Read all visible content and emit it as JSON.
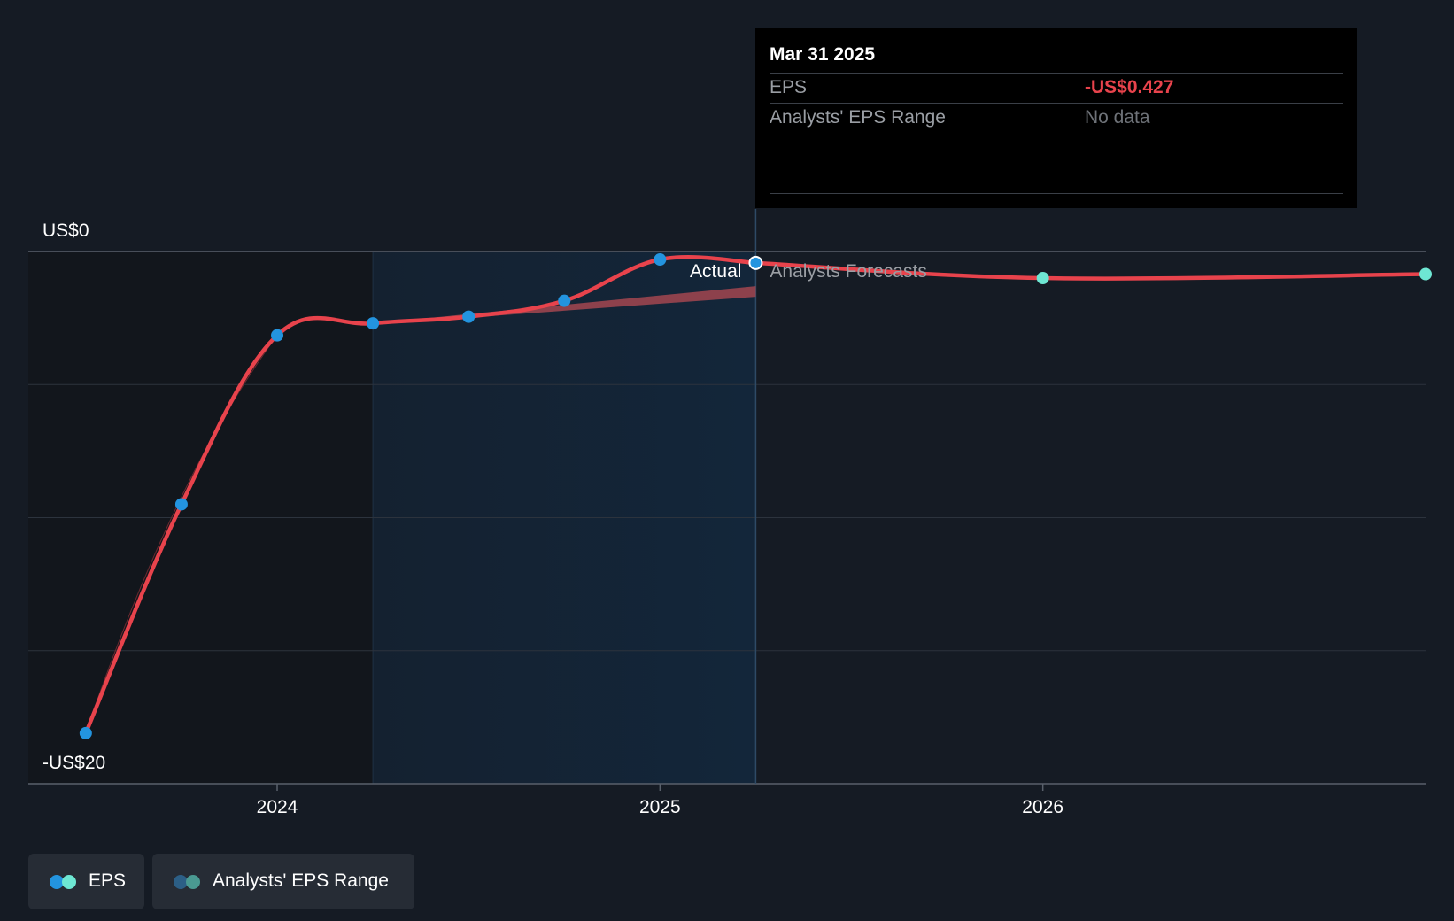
{
  "chart_data": {
    "type": "line",
    "title": "",
    "y_axis": {
      "top_label": "US$0",
      "bottom_label": "-US$20",
      "range": [
        -20,
        0
      ],
      "gridlines": [
        0,
        -5,
        -10,
        -15,
        -20
      ]
    },
    "x_axis": {
      "ticks": [
        {
          "label": "2024",
          "value": 2024.0
        },
        {
          "label": "2025",
          "value": 2025.0
        },
        {
          "label": "2026",
          "value": 2026.0
        }
      ],
      "range": [
        2023.35,
        2027.0
      ]
    },
    "highlight_region": {
      "from": 2024.25,
      "to": 2025.25
    },
    "divider_date": 2025.25,
    "region_labels": {
      "actual": "Actual",
      "forecast": "Analysts Forecasts"
    },
    "series": [
      {
        "name": "EPS",
        "kind": "actual",
        "color": "#e8434c",
        "points": [
          {
            "x": 2023.5,
            "y": -18.1
          },
          {
            "x": 2023.75,
            "y": -9.5
          },
          {
            "x": 2024.0,
            "y": -3.15
          },
          {
            "x": 2024.25,
            "y": -2.7
          },
          {
            "x": 2024.5,
            "y": -2.45
          },
          {
            "x": 2024.75,
            "y": -1.85
          },
          {
            "x": 2025.0,
            "y": -0.3
          },
          {
            "x": 2025.25,
            "y": -0.427
          }
        ]
      },
      {
        "name": "EPS",
        "kind": "forecast",
        "color": "#e8434c",
        "points": [
          {
            "x": 2025.25,
            "y": -0.427
          },
          {
            "x": 2026.0,
            "y": -1.0
          },
          {
            "x": 2027.0,
            "y": -0.85
          }
        ]
      }
    ],
    "analyst_range_band": {
      "color": "#a34650",
      "x": [
        2024.25,
        2025.25
      ],
      "upper": [
        -2.7,
        -1.3
      ],
      "lower": [
        -2.75,
        -1.7
      ]
    },
    "tooltip": {
      "date": "Mar 31 2025",
      "rows": [
        {
          "label": "EPS",
          "value": "-US$0.427"
        },
        {
          "label": "Analysts' EPS Range",
          "value": "No data"
        }
      ]
    },
    "legend": [
      {
        "label": "EPS",
        "colors": [
          "#2394df",
          "#6ee7d3"
        ]
      },
      {
        "label": "Analysts' EPS Range",
        "colors": [
          "#2c5f86",
          "#4a9a92"
        ]
      }
    ]
  },
  "colors": {
    "background": "#151b24",
    "past_shade": "#12161c",
    "highlight_shade": "#13263a",
    "grid": "#2c333d",
    "axis": "#59606b",
    "actual_point": "#2394df",
    "forecast_point": "#6ee7d3"
  }
}
